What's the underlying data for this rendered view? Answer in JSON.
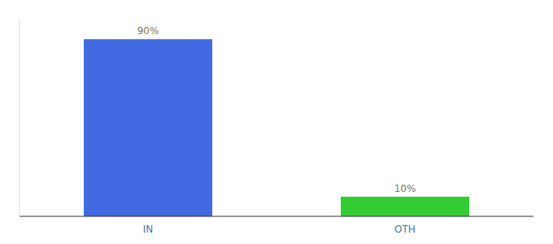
{
  "chart_data": {
    "type": "bar",
    "categories": [
      "IN",
      "OTH"
    ],
    "values": [
      90,
      10
    ],
    "value_labels": [
      "90%",
      "10%"
    ],
    "colors": [
      "#4169e1",
      "#33cc33"
    ],
    "ylim": [
      0,
      100
    ],
    "data_labels": true,
    "tick_labels": "x",
    "grid": false
  }
}
